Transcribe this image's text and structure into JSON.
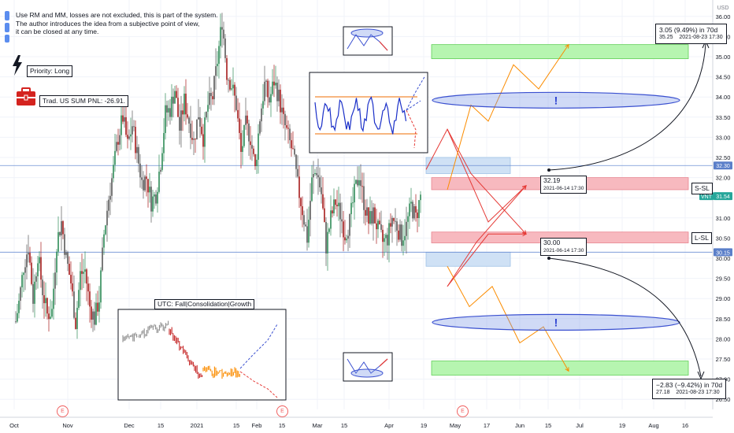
{
  "chart_data": {
    "type": "candlestick",
    "currency": "USD",
    "y_ticks": [
      26.5,
      27.0,
      27.5,
      28.0,
      28.5,
      29.0,
      29.5,
      30.0,
      30.5,
      31.0,
      31.5,
      32.0,
      32.5,
      33.0,
      33.5,
      34.0,
      34.5,
      35.0,
      35.5,
      36.0
    ],
    "y_tick_labels": [
      "26.50",
      "27.00",
      "27.50",
      "28.00",
      "28.50",
      "29.00",
      "29.50",
      "30.00",
      "30.50",
      "31.00",
      "31.50",
      "32.00",
      "32.50",
      "33.00",
      "33.50",
      "34.00",
      "34.50",
      "35.00",
      "35.50",
      "36.00"
    ],
    "ylim": [
      26.25,
      36.25
    ],
    "x_ticks": [
      "Oct",
      "Nov",
      "Dec",
      "15",
      "2021",
      "15",
      "Feb",
      "15",
      "Mar",
      "15",
      "Apr",
      "19",
      "May",
      "17",
      "Jun",
      "15",
      "Jul",
      "19",
      "Aug",
      "16"
    ],
    "price_axis_badges": [
      {
        "label": "32.30",
        "value": 32.3,
        "color": "#5b7fc9"
      },
      {
        "label": "VNT",
        "value": 31.54,
        "color": "#26a69a"
      },
      {
        "label": "31.54",
        "value": 31.54,
        "color": "#26a69a"
      },
      {
        "label": "30.15",
        "value": 30.15,
        "color": "#5b7fc9"
      }
    ],
    "horizontal_levels": [
      32.3,
      30.15
    ],
    "last_price": 31.54,
    "candles_anchor_path": [
      [
        0,
        29.9
      ],
      [
        6,
        27.2
      ],
      [
        12,
        26.8
      ],
      [
        18,
        28.2
      ],
      [
        24,
        28.9
      ],
      [
        30,
        29.8
      ],
      [
        36,
        30.3
      ],
      [
        42,
        29.0
      ],
      [
        48,
        30.1
      ],
      [
        54,
        29.2
      ],
      [
        60,
        28.6
      ],
      [
        66,
        28.7
      ],
      [
        72,
        30.4
      ],
      [
        78,
        30.9
      ],
      [
        84,
        30.0
      ],
      [
        90,
        29.4
      ],
      [
        96,
        28.4
      ],
      [
        102,
        29.6
      ],
      [
        108,
        29.7
      ],
      [
        114,
        28.8
      ],
      [
        120,
        28.5
      ],
      [
        126,
        29.0
      ],
      [
        132,
        30.6
      ],
      [
        138,
        31.5
      ],
      [
        144,
        32.2
      ],
      [
        150,
        33.0
      ],
      [
        156,
        33.5
      ],
      [
        162,
        32.8
      ],
      [
        168,
        33.3
      ],
      [
        174,
        32.6
      ],
      [
        180,
        31.9
      ],
      [
        186,
        32.0
      ],
      [
        192,
        31.4
      ],
      [
        198,
        31.6
      ],
      [
        204,
        32.4
      ],
      [
        210,
        33.6
      ],
      [
        216,
        33.7
      ],
      [
        222,
        34.2
      ],
      [
        228,
        33.2
      ],
      [
        234,
        33.9
      ],
      [
        240,
        33.4
      ],
      [
        246,
        32.9
      ],
      [
        252,
        33.6
      ],
      [
        258,
        33.0
      ],
      [
        264,
        33.8
      ],
      [
        270,
        34.0
      ],
      [
        276,
        34.9
      ],
      [
        282,
        35.9
      ],
      [
        288,
        34.6
      ],
      [
        294,
        34.3
      ],
      [
        300,
        33.8
      ],
      [
        306,
        32.6
      ],
      [
        312,
        33.3
      ],
      [
        318,
        33.0
      ],
      [
        324,
        32.2
      ],
      [
        330,
        33.5
      ],
      [
        336,
        34.3
      ],
      [
        342,
        33.9
      ],
      [
        348,
        34.4
      ],
      [
        354,
        34.0
      ],
      [
        360,
        33.4
      ],
      [
        366,
        33.0
      ],
      [
        372,
        32.6
      ],
      [
        378,
        31.8
      ],
      [
        384,
        31.2
      ],
      [
        390,
        30.5
      ],
      [
        396,
        31.9
      ],
      [
        402,
        32.2
      ],
      [
        408,
        31.6
      ],
      [
        414,
        30.3
      ],
      [
        420,
        31.0
      ],
      [
        426,
        31.4
      ],
      [
        432,
        31.1
      ],
      [
        438,
        30.6
      ],
      [
        444,
        30.9
      ],
      [
        450,
        31.6
      ],
      [
        456,
        32.1
      ],
      [
        462,
        31.4
      ],
      [
        468,
        30.9
      ],
      [
        474,
        31.1
      ],
      [
        480,
        30.7
      ],
      [
        486,
        30.4
      ],
      [
        492,
        30.5
      ],
      [
        498,
        31.0
      ],
      [
        504,
        30.8
      ],
      [
        510,
        30.5
      ],
      [
        516,
        30.8
      ],
      [
        522,
        31.3
      ],
      [
        528,
        31.0
      ],
      [
        534,
        31.54
      ]
    ],
    "zones": [
      {
        "kind": "target-top",
        "from_x": 548,
        "to_x": 874,
        "y_top": 35.3,
        "y_bottom": 34.95,
        "color": "#b6f5b0"
      },
      {
        "kind": "stop-short",
        "from_x": 548,
        "to_x": 874,
        "y_top": 32.0,
        "y_bottom": 31.7,
        "color": "#f7b9bf"
      },
      {
        "kind": "stop-long",
        "from_x": 548,
        "to_x": 874,
        "y_top": 30.65,
        "y_bottom": 30.38,
        "color": "#f7b9bf"
      },
      {
        "kind": "target-bottom",
        "from_x": 548,
        "to_x": 874,
        "y_top": 27.45,
        "y_bottom": 27.1,
        "color": "#b6f5b0"
      },
      {
        "kind": "blue-upper",
        "from_x": 541,
        "to_x": 648,
        "y_top": 32.5,
        "y_bottom": 32.1,
        "color": "#cfe1f5"
      },
      {
        "kind": "blue-lower",
        "from_x": 541,
        "to_x": 648,
        "y_top": 30.15,
        "y_bottom": 29.8,
        "color": "#cfe1f5"
      }
    ],
    "ellipses": [
      {
        "cx": 706,
        "cy_value": 33.92,
        "label": "!"
      },
      {
        "cx": 706,
        "cy_value": 28.41,
        "label": "!"
      }
    ],
    "projections": {
      "red": [
        [
          541,
          32.2
        ],
        [
          568,
          33.2
        ],
        [
          620,
          30.9
        ],
        [
          668,
          31.8
        ]
      ],
      "red2": [
        [
          568,
          33.2
        ],
        [
          598,
          32.1
        ],
        [
          668,
          30.6
        ]
      ],
      "red_low": [
        [
          568,
          29.3
        ],
        [
          605,
          30.4
        ],
        [
          668,
          31.8
        ]
      ],
      "red_low2": [
        [
          568,
          29.3
        ],
        [
          620,
          30.6
        ],
        [
          668,
          30.6
        ]
      ],
      "orange_up": [
        [
          568,
          31.7
        ],
        [
          598,
          33.8
        ],
        [
          620,
          33.4
        ],
        [
          652,
          34.8
        ],
        [
          684,
          34.2
        ],
        [
          722,
          35.3
        ]
      ],
      "orange_down": [
        [
          568,
          29.8
        ],
        [
          596,
          28.8
        ],
        [
          625,
          29.3
        ],
        [
          660,
          27.9
        ],
        [
          690,
          28.3
        ],
        [
          722,
          27.2
        ]
      ]
    },
    "text_annotations": {
      "priority": "Priority: Long",
      "pnl": "Trad. US SUM PNL: -26.91.",
      "note_lines": [
        "Use RM and MM, losses are not excluded, this is part of the system.",
        "The author introduces the idea from a subjective point of view,",
        "it can be closed at any time."
      ],
      "upper_entry_value": "32.19",
      "upper_entry_date": "2021-06-14 17:30",
      "lower_entry_value": "30.00",
      "lower_entry_date": "2021-06-14 17:30",
      "upper_target_main": "3.05 (9.49%) in 70d",
      "upper_target_sub_a": "35.25",
      "upper_target_sub_b": "2021-08-23  17:30",
      "lower_target_main": "−2.83 (−9.42%) in 70d",
      "lower_target_sub_a": "27.18",
      "lower_target_sub_b": "2021-08-23  17:30",
      "s_sl": "S-SL",
      "l_sl": "L-SL",
      "inset_title": "UTC: Fall|Consolidation|Growth",
      "earnings_marker": "E"
    }
  }
}
